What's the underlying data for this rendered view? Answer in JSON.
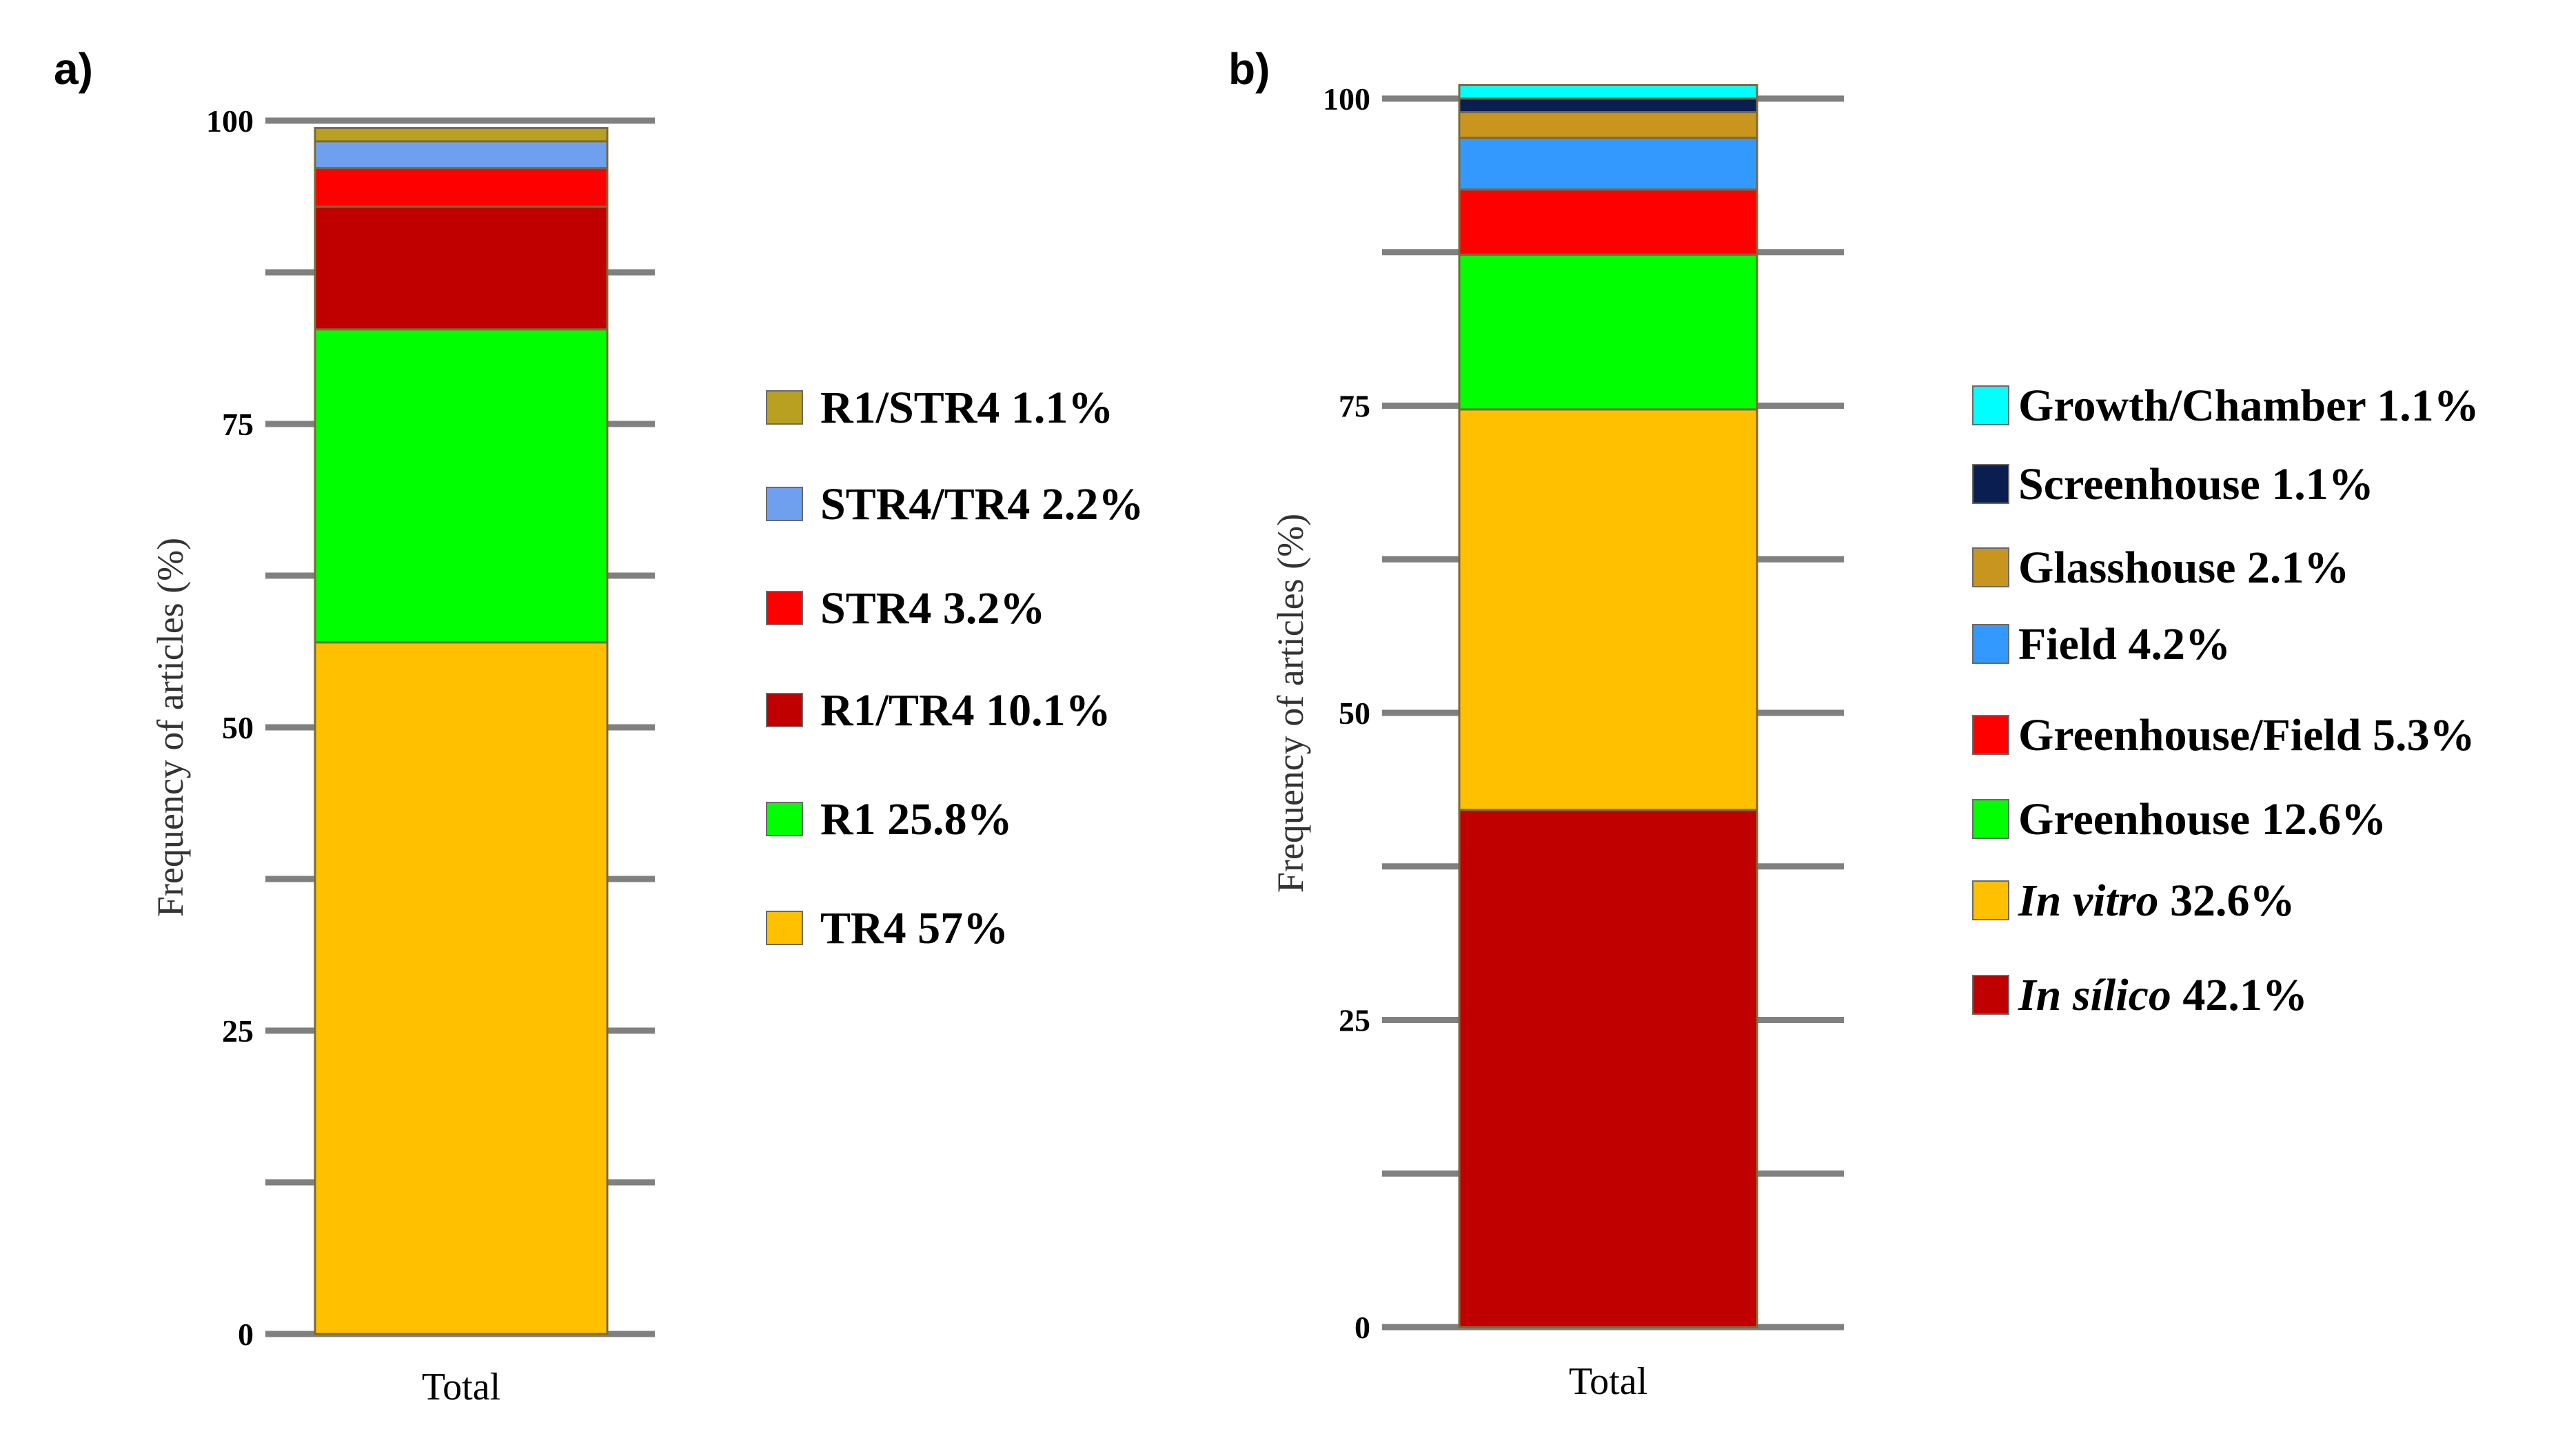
{
  "chart_data": [
    {
      "type": "bar",
      "stacked": true,
      "panel_label": "a)",
      "title": "",
      "xlabel": "",
      "ylabel": "Frequency of articles (%)",
      "ylim": [
        0,
        100
      ],
      "yticks": [
        0,
        25,
        50,
        75,
        100
      ],
      "categories": [
        "Total"
      ],
      "legend_position": "right",
      "series": [
        {
          "name": "TR4",
          "label": "TR4 57%",
          "values": [
            57.0
          ],
          "color": "#FFC000"
        },
        {
          "name": "R1",
          "label": "R1 25.8%",
          "values": [
            25.8
          ],
          "color": "#00FF00"
        },
        {
          "name": "R1/TR4",
          "label": "R1/TR4 10.1%",
          "values": [
            10.1
          ],
          "color": "#C00000"
        },
        {
          "name": "STR4",
          "label": "STR4 3.2%",
          "values": [
            3.2
          ],
          "color": "#FF0000"
        },
        {
          "name": "STR4/TR4",
          "label": "STR4/TR4 2.2%",
          "values": [
            2.2
          ],
          "color": "#6FA0F0"
        },
        {
          "name": "R1/STR4",
          "label": "R1/STR4 1.1%",
          "values": [
            1.1
          ],
          "color": "#B8A020"
        }
      ]
    },
    {
      "type": "bar",
      "stacked": true,
      "panel_label": "b)",
      "title": "",
      "xlabel": "",
      "ylabel": "Frequency of articles (%)",
      "ylim": [
        0,
        100
      ],
      "yticks": [
        0,
        25,
        50,
        75,
        100
      ],
      "categories": [
        "Total"
      ],
      "legend_position": "right",
      "series": [
        {
          "name": "In sílico",
          "italic": "In sílico",
          "pct": "42.1%",
          "values": [
            42.1
          ],
          "color": "#C00000"
        },
        {
          "name": "In vitro",
          "italic": "In vitro",
          "pct": "32.6%",
          "values": [
            32.6
          ],
          "color": "#FFC000"
        },
        {
          "name": "Greenhouse",
          "label": "Greenhouse 12.6%",
          "values": [
            12.6
          ],
          "color": "#00FF00"
        },
        {
          "name": "Greenhouse/Field",
          "label": "Greenhouse/Field 5.3%",
          "values": [
            5.3
          ],
          "color": "#FF0000"
        },
        {
          "name": "Field",
          "label": "Field 4.2%",
          "values": [
            4.2
          ],
          "color": "#3399FF"
        },
        {
          "name": "Glasshouse",
          "label": "Glasshouse 2.1%",
          "values": [
            2.1
          ],
          "color": "#C8961E"
        },
        {
          "name": "Screenhouse",
          "label": "Screenhouse 1.1%",
          "values": [
            1.1
          ],
          "color": "#0A1E50"
        },
        {
          "name": "Growth/Chamber",
          "label": "Growth/Chamber 1.1%",
          "values": [
            1.1
          ],
          "color": "#00FFFF"
        }
      ]
    }
  ]
}
